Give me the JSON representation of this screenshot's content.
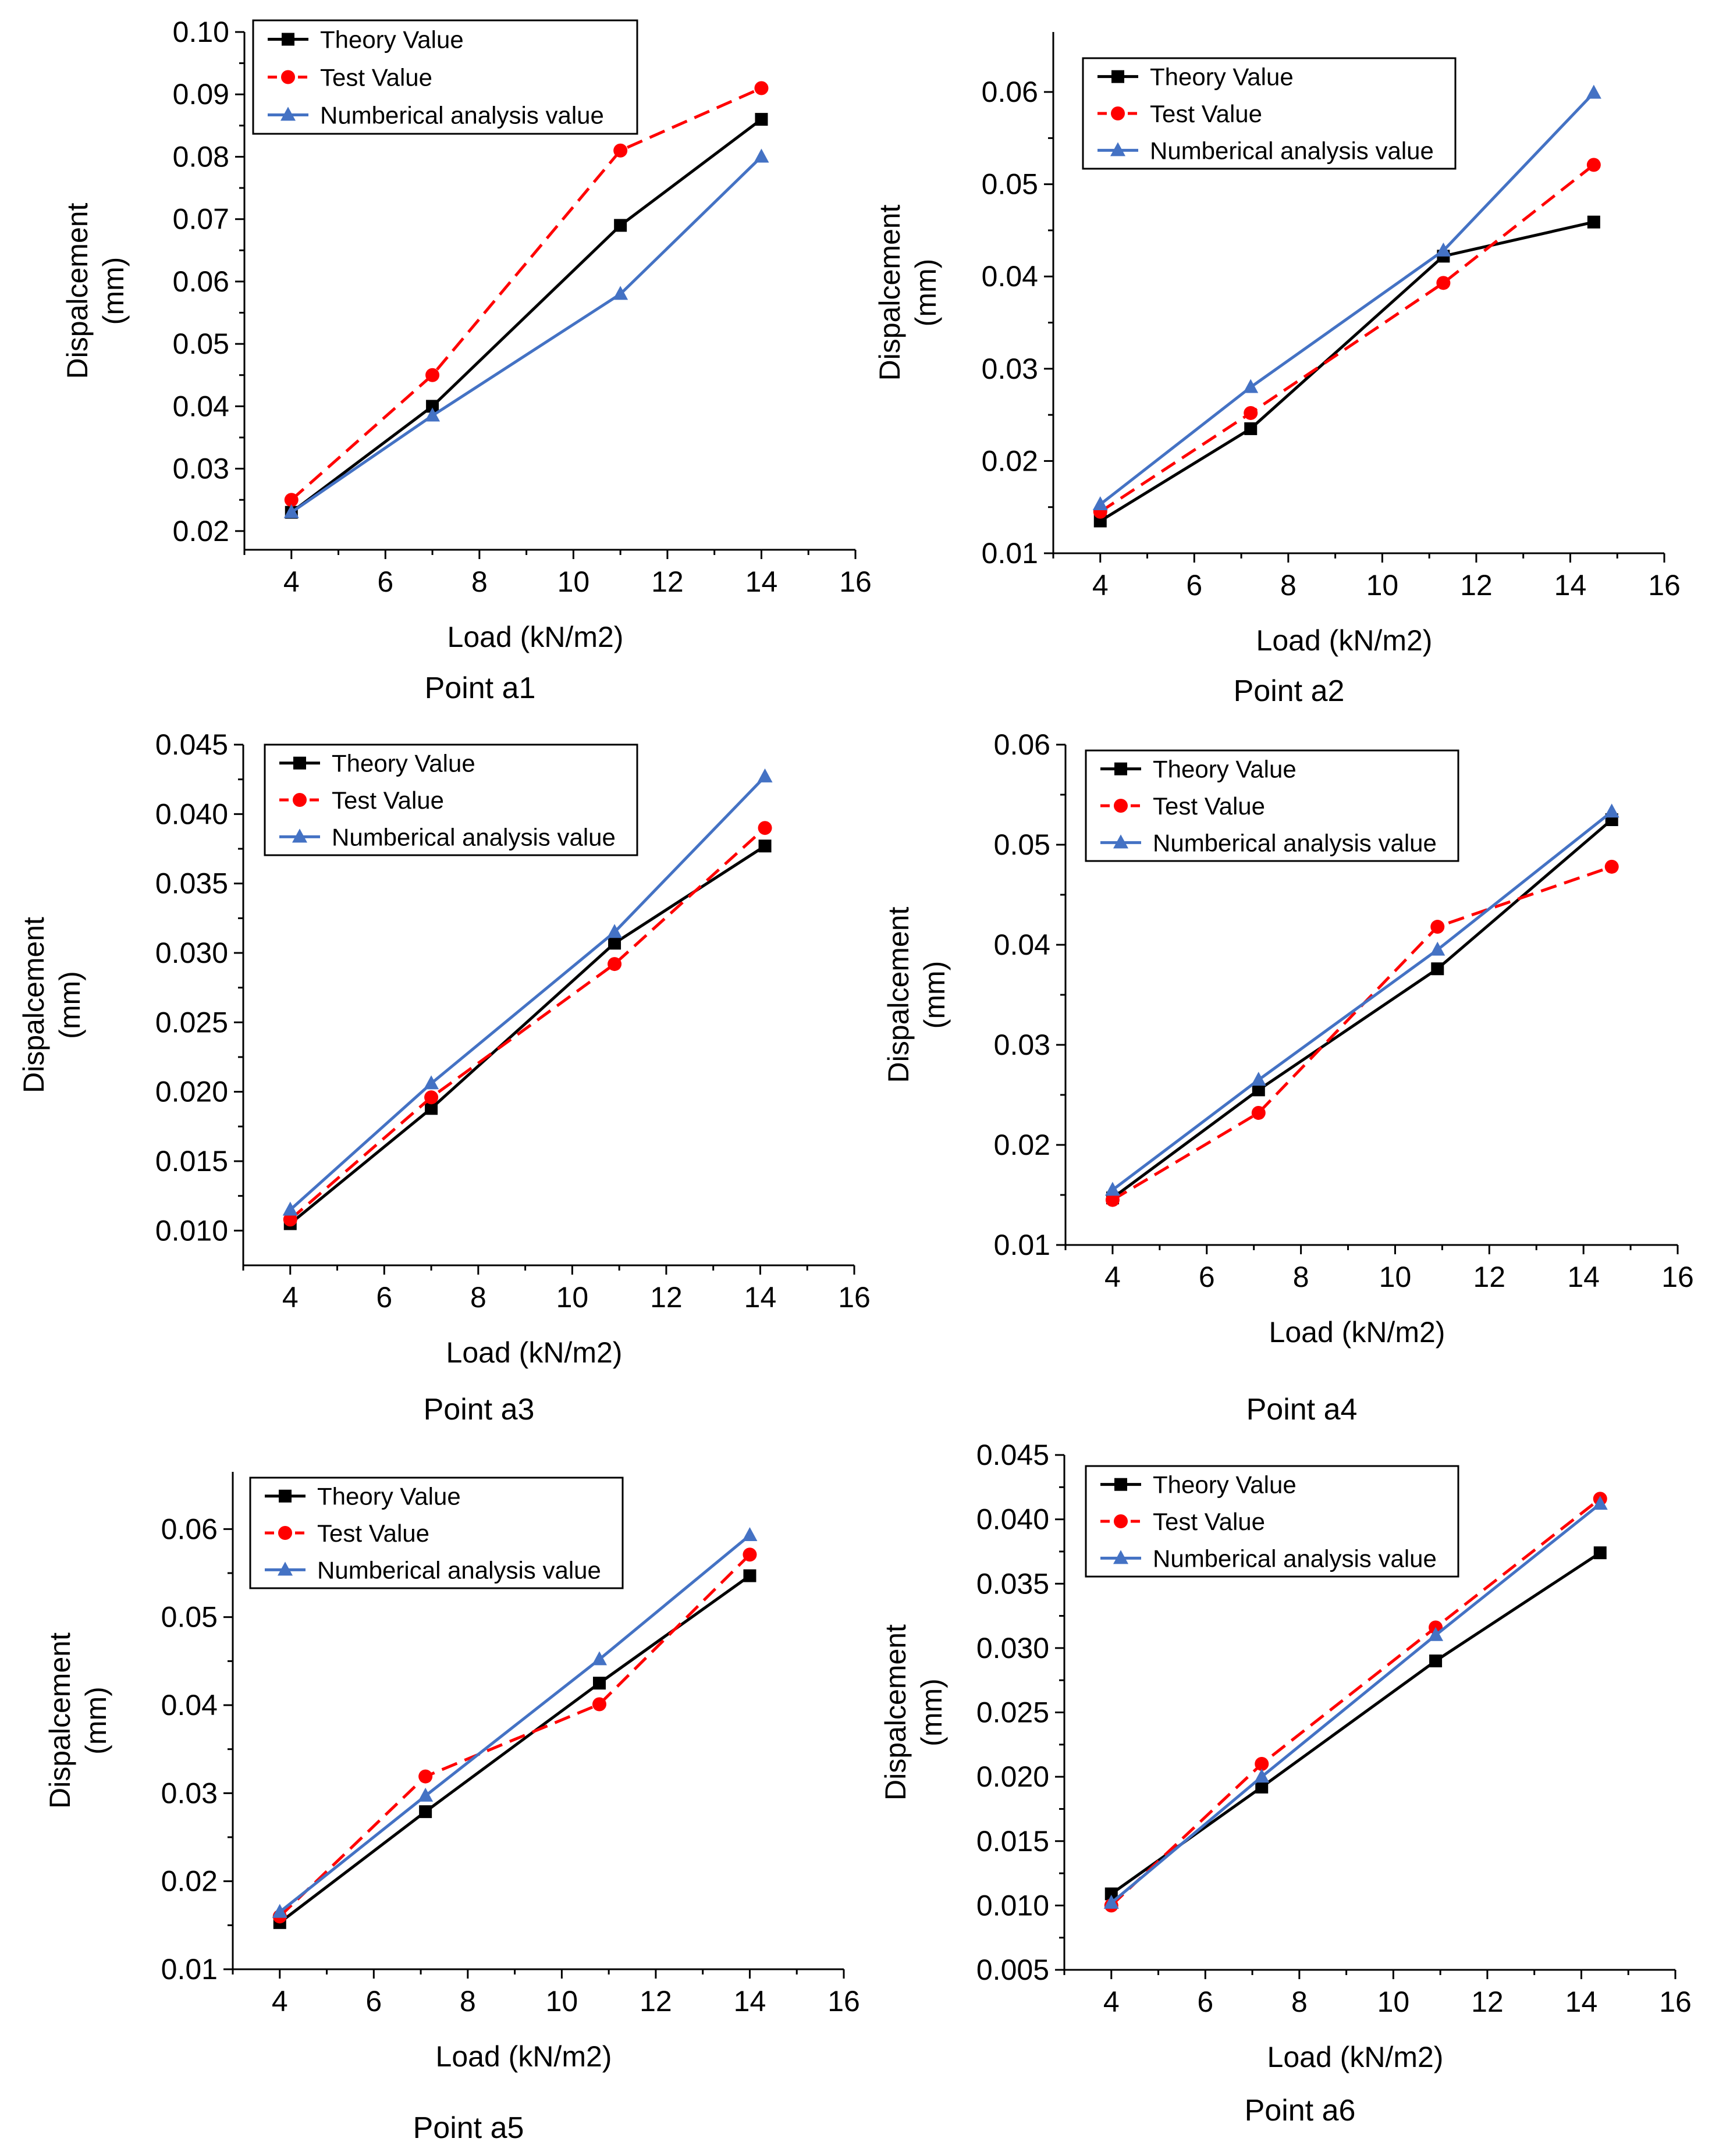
{
  "figure": {
    "legend": [
      "Theory Value",
      "Test Value",
      "Numberical  analysis value"
    ],
    "series_colors": [
      "#000000",
      "#ff0000",
      "#4472c4"
    ],
    "series_markers": [
      "square",
      "circle",
      "triangle"
    ],
    "series_line_styles": [
      "solid",
      "dashed",
      "solid"
    ]
  },
  "chart_data": [
    {
      "type": "line",
      "caption": "Point a1",
      "xlabel": "Load (kN/m2)",
      "ylabel": [
        "Dispalcement",
        "(mm)"
      ],
      "xlim": [
        3,
        16
      ],
      "ylim": [
        0.017,
        0.1
      ],
      "xticks": [
        4,
        6,
        8,
        10,
        12,
        14,
        16
      ],
      "xtick_labels": [
        "4",
        "6",
        "8",
        "10",
        "12",
        "14",
        "16"
      ],
      "yticks": [
        0.02,
        0.03,
        0.04,
        0.05,
        0.06,
        0.07,
        0.08,
        0.09,
        0.1
      ],
      "ytick_labels": [
        "0.02",
        "0.03",
        "0.04",
        "0.05",
        "0.06",
        "0.07",
        "0.08",
        "0.09",
        "0.10"
      ],
      "series": [
        {
          "name": "Theory Value",
          "x": [
            4,
            7,
            11,
            14
          ],
          "values": [
            0.023,
            0.04,
            0.069,
            0.086
          ]
        },
        {
          "name": "Test Value",
          "x": [
            4,
            7,
            11,
            14
          ],
          "values": [
            0.025,
            0.045,
            0.081,
            0.091
          ]
        },
        {
          "name": "Numberical  analysis value",
          "x": [
            4,
            7,
            11,
            14
          ],
          "values": [
            0.023,
            0.0385,
            0.058,
            0.08
          ]
        }
      ]
    },
    {
      "type": "line",
      "caption": "Point a2",
      "xlabel": "Load (kN/m2)",
      "ylabel": [
        "Dispalcement",
        "(mm)"
      ],
      "xlim": [
        3,
        16
      ],
      "ylim": [
        0.01,
        0.0665
      ],
      "xticks": [
        4,
        6,
        8,
        10,
        12,
        14,
        16
      ],
      "xtick_labels": [
        "4",
        "6",
        "8",
        "10",
        "12",
        "14",
        "16"
      ],
      "yticks": [
        0.01,
        0.02,
        0.03,
        0.04,
        0.05,
        0.06
      ],
      "ytick_labels": [
        "0.01",
        "0.02",
        "0.03",
        "0.04",
        "0.05",
        "0.06"
      ],
      "series": [
        {
          "name": "Theory Value",
          "x": [
            4,
            7.2,
            11.3,
            14.5
          ],
          "values": [
            0.0135,
            0.0235,
            0.0422,
            0.0459
          ]
        },
        {
          "name": "Test Value",
          "x": [
            4,
            7.2,
            11.3,
            14.5
          ],
          "values": [
            0.0145,
            0.0252,
            0.0393,
            0.0521
          ]
        },
        {
          "name": "Numberical  analysis value",
          "x": [
            4,
            7.2,
            11.3,
            14.5
          ],
          "values": [
            0.0153,
            0.028,
            0.0428,
            0.0599
          ]
        }
      ]
    },
    {
      "type": "line",
      "caption": "Point a3",
      "xlabel": "Load (kN/m2)",
      "ylabel": [
        "Dispalcement",
        "(mm)"
      ],
      "xlim": [
        3,
        16
      ],
      "ylim": [
        0.0075,
        0.045
      ],
      "xticks": [
        4,
        6,
        8,
        10,
        12,
        14,
        16
      ],
      "xtick_labels": [
        "4",
        "6",
        "8",
        "10",
        "12",
        "14",
        "16"
      ],
      "yticks": [
        0.01,
        0.015,
        0.02,
        0.025,
        0.03,
        0.035,
        0.04,
        0.045
      ],
      "ytick_labels": [
        "0.010",
        "0.015",
        "0.020",
        "0.025",
        "0.030",
        "0.035",
        "0.040",
        "0.045"
      ],
      "series": [
        {
          "name": "Theory Value",
          "x": [
            4,
            7,
            10.9,
            14.1
          ],
          "values": [
            0.0105,
            0.0188,
            0.0307,
            0.0377
          ]
        },
        {
          "name": "Test Value",
          "x": [
            4,
            7,
            10.9,
            14.1
          ],
          "values": [
            0.0108,
            0.0196,
            0.0292,
            0.039
          ]
        },
        {
          "name": "Numberical  analysis value",
          "x": [
            4,
            7,
            10.9,
            14.1
          ],
          "values": [
            0.0115,
            0.0206,
            0.0315,
            0.0427
          ]
        }
      ]
    },
    {
      "type": "line",
      "caption": "Point a4",
      "xlabel": "Load (kN/m2)",
      "ylabel": [
        "Dispalcement",
        "(mm)"
      ],
      "xlim": [
        3,
        16
      ],
      "ylim": [
        0.01,
        0.06
      ],
      "xticks": [
        4,
        6,
        8,
        10,
        12,
        14,
        16
      ],
      "xtick_labels": [
        "4",
        "6",
        "8",
        "10",
        "12",
        "14",
        "16"
      ],
      "yticks": [
        0.01,
        0.02,
        0.03,
        0.04,
        0.05,
        0.06
      ],
      "ytick_labels": [
        "0.01",
        "0.02",
        "0.03",
        "0.04",
        "0.05",
        "0.06"
      ],
      "series": [
        {
          "name": "Theory Value",
          "x": [
            4,
            7.1,
            10.9,
            14.6
          ],
          "values": [
            0.0147,
            0.0255,
            0.0376,
            0.0525
          ]
        },
        {
          "name": "Test Value",
          "x": [
            4,
            7.1,
            10.9,
            14.6
          ],
          "values": [
            0.0145,
            0.0232,
            0.0418,
            0.0478
          ]
        },
        {
          "name": "Numberical  analysis value",
          "x": [
            4,
            7.1,
            10.9,
            14.6
          ],
          "values": [
            0.0155,
            0.0265,
            0.0395,
            0.0533
          ]
        }
      ]
    },
    {
      "type": "line",
      "caption": "Point a5",
      "xlabel": "Load (kN/m2)",
      "ylabel": [
        "Dispalcement",
        "(mm)"
      ],
      "xlim": [
        3,
        16
      ],
      "ylim": [
        0.01,
        0.0665
      ],
      "xticks": [
        4,
        6,
        8,
        10,
        12,
        14,
        16
      ],
      "xtick_labels": [
        "4",
        "6",
        "8",
        "10",
        "12",
        "14",
        "16"
      ],
      "yticks": [
        0.01,
        0.02,
        0.03,
        0.04,
        0.05,
        0.06
      ],
      "ytick_labels": [
        "0.01",
        "0.02",
        "0.03",
        "0.04",
        "0.05",
        "0.06"
      ],
      "series": [
        {
          "name": "Theory Value",
          "x": [
            4,
            7.1,
            10.8,
            14
          ],
          "values": [
            0.0153,
            0.0279,
            0.0425,
            0.0547
          ]
        },
        {
          "name": "Test Value",
          "x": [
            4,
            7.1,
            10.8,
            14
          ],
          "values": [
            0.016,
            0.0319,
            0.0401,
            0.0571
          ]
        },
        {
          "name": "Numberical  analysis value",
          "x": [
            4,
            7.1,
            10.8,
            14
          ],
          "values": [
            0.0165,
            0.0297,
            0.0452,
            0.0593
          ]
        }
      ]
    },
    {
      "type": "line",
      "caption": "Point a6",
      "xlabel": "Load (kN/m2)",
      "ylabel": [
        "Dispalcement",
        "(mm)"
      ],
      "xlim": [
        3,
        16
      ],
      "ylim": [
        0.005,
        0.045
      ],
      "xticks": [
        4,
        6,
        8,
        10,
        12,
        14,
        16
      ],
      "xtick_labels": [
        "4",
        "6",
        "8",
        "10",
        "12",
        "14",
        "16"
      ],
      "yticks": [
        0.005,
        0.01,
        0.015,
        0.02,
        0.025,
        0.03,
        0.035,
        0.04,
        0.045
      ],
      "ytick_labels": [
        "0.005",
        "0.010",
        "0.015",
        "0.020",
        "0.025",
        "0.030",
        "0.035",
        "0.040",
        "0.045"
      ],
      "series": [
        {
          "name": "Theory Value",
          "x": [
            4,
            7.2,
            10.9,
            14.4
          ],
          "values": [
            0.0109,
            0.0192,
            0.029,
            0.0374
          ]
        },
        {
          "name": "Test Value",
          "x": [
            4,
            7.2,
            10.9,
            14.4
          ],
          "values": [
            0.01,
            0.021,
            0.0316,
            0.0416
          ]
        },
        {
          "name": "Numberical  analysis value",
          "x": [
            4,
            7.2,
            10.9,
            14.4
          ],
          "values": [
            0.0102,
            0.02,
            0.031,
            0.0412
          ]
        }
      ]
    }
  ]
}
